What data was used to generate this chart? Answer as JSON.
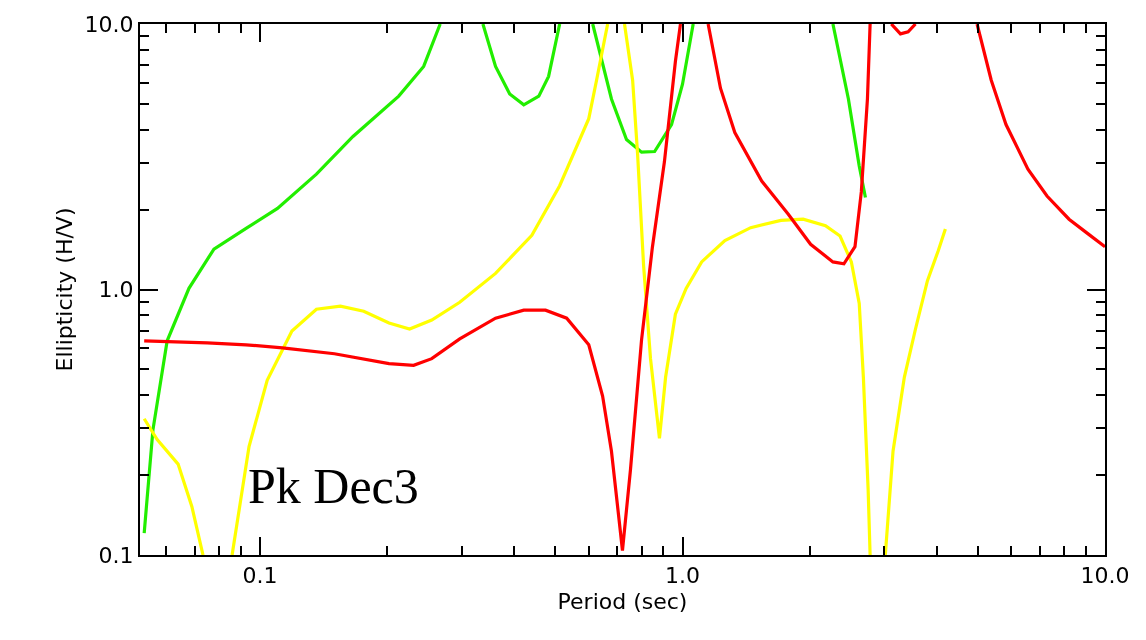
{
  "chart_data": {
    "type": "line",
    "xlabel": "Period (sec)",
    "ylabel": "Ellipticity (H/V)",
    "log": "xy",
    "grid": false,
    "marker": "none",
    "line_style": "solid",
    "xlim": [
      0.052,
      10
    ],
    "ylim": [
      0.1,
      10
    ],
    "xticks": [
      {
        "value": 0.06,
        "label": null
      },
      {
        "value": 0.07,
        "label": null
      },
      {
        "value": 0.08,
        "label": null
      },
      {
        "value": 0.09,
        "label": null
      },
      {
        "value": 0.1,
        "label": "0.1"
      },
      {
        "value": 0.2,
        "label": null
      },
      {
        "value": 0.3,
        "label": null
      },
      {
        "value": 0.4,
        "label": null
      },
      {
        "value": 0.5,
        "label": null
      },
      {
        "value": 0.6,
        "label": null
      },
      {
        "value": 0.7,
        "label": null
      },
      {
        "value": 0.8,
        "label": null
      },
      {
        "value": 0.9,
        "label": null
      },
      {
        "value": 1,
        "label": "1.0"
      },
      {
        "value": 2,
        "label": null
      },
      {
        "value": 3,
        "label": null
      },
      {
        "value": 4,
        "label": null
      },
      {
        "value": 5,
        "label": null
      },
      {
        "value": 6,
        "label": null
      },
      {
        "value": 7,
        "label": null
      },
      {
        "value": 8,
        "label": null
      },
      {
        "value": 9,
        "label": null
      },
      {
        "value": 10,
        "label": "10.0"
      }
    ],
    "yticks": [
      {
        "value": 0.1,
        "label": "0.1"
      },
      {
        "value": 0.2,
        "label": null
      },
      {
        "value": 0.3,
        "label": null
      },
      {
        "value": 0.4,
        "label": null
      },
      {
        "value": 0.5,
        "label": null
      },
      {
        "value": 0.6,
        "label": null
      },
      {
        "value": 0.7,
        "label": null
      },
      {
        "value": 0.8,
        "label": null
      },
      {
        "value": 0.9,
        "label": null
      },
      {
        "value": 1,
        "label": "1.0"
      },
      {
        "value": 2,
        "label": null
      },
      {
        "value": 3,
        "label": null
      },
      {
        "value": 4,
        "label": null
      },
      {
        "value": 5,
        "label": null
      },
      {
        "value": 6,
        "label": null
      },
      {
        "value": 7,
        "label": null
      },
      {
        "value": 8,
        "label": null
      },
      {
        "value": 9,
        "label": null
      },
      {
        "value": 10,
        "label": "10.0"
      }
    ],
    "annotations": [
      "Pk Dec3"
    ],
    "series": [
      {
        "color": "#22ee00",
        "x": [
          0.0532,
          0.0558,
          0.0603,
          0.0679,
          0.0778,
          0.0927,
          0.11,
          0.136,
          0.166,
          0.213,
          0.244,
          0.267
        ],
        "values": [
          0.121,
          0.296,
          0.641,
          1.01,
          1.42,
          1.7,
          2.02,
          2.72,
          3.77,
          5.35,
          6.92,
          10
        ]
      },
      {
        "color": "#22ee00",
        "x": [
          0.337,
          0.361,
          0.39,
          0.421,
          0.457,
          0.482,
          0.512
        ],
        "values": [
          10,
          6.92,
          5.45,
          4.96,
          5.35,
          6.35,
          10
        ]
      },
      {
        "color": "#22ee00",
        "x": [
          0.613,
          0.679,
          0.737,
          0.8,
          0.859,
          0.942,
          1.0,
          1.06
        ],
        "values": [
          10,
          5.22,
          3.67,
          3.29,
          3.31,
          4.18,
          5.93,
          10
        ]
      },
      {
        "color": "#22ee00",
        "x": [
          2.27,
          2.47,
          2.62,
          2.71
        ],
        "values": [
          10,
          5.22,
          2.92,
          2.22
        ]
      },
      {
        "color": "#ffff00",
        "x": [
          0.0532,
          0.0571,
          0.064,
          0.069,
          0.0733
        ],
        "values": [
          0.326,
          0.272,
          0.22,
          0.152,
          0.1
        ]
      },
      {
        "color": "#ffff00",
        "x": [
          0.0859,
          0.0942,
          0.104,
          0.119,
          0.136,
          0.155,
          0.176,
          0.202,
          0.226,
          0.255,
          0.297,
          0.361,
          0.44,
          0.512,
          0.6,
          0.626,
          0.665
        ],
        "values": [
          0.1,
          0.256,
          0.455,
          0.698,
          0.843,
          0.865,
          0.828,
          0.748,
          0.71,
          0.767,
          0.895,
          1.15,
          1.6,
          2.46,
          4.4,
          6.14,
          10
        ]
      },
      {
        "color": "#ffff00",
        "x": [
          0.729,
          0.762,
          0.783,
          0.809,
          0.84,
          0.882,
          0.912,
          0.962,
          1.02,
          1.11,
          1.26,
          1.45,
          1.71,
          1.93,
          2.18,
          2.36,
          2.51,
          2.62,
          2.68,
          2.75,
          2.78
        ],
        "values": [
          10,
          6.14,
          3.23,
          1.23,
          0.549,
          0.275,
          0.467,
          0.807,
          1.01,
          1.27,
          1.53,
          1.71,
          1.82,
          1.84,
          1.74,
          1.59,
          1.27,
          0.887,
          0.467,
          0.177,
          0.1
        ]
      },
      {
        "color": "#ffff00",
        "x": [
          3.02,
          3.15,
          3.35,
          3.56,
          3.8,
          4.03,
          4.19
        ],
        "values": [
          0.1,
          0.246,
          0.467,
          0.71,
          1.08,
          1.4,
          1.69
        ]
      },
      {
        "color": "#ff0000",
        "x": [
          0.0532,
          0.075,
          0.0927,
          0.113,
          0.15,
          0.202,
          0.231,
          0.255,
          0.297,
          0.361,
          0.421,
          0.474,
          0.532,
          0.6,
          0.647,
          0.679,
          0.721,
          0.753,
          0.8,
          0.849,
          0.906,
          0.962,
          0.989
        ],
        "values": [
          0.641,
          0.63,
          0.619,
          0.603,
          0.573,
          0.526,
          0.518,
          0.549,
          0.652,
          0.78,
          0.836,
          0.836,
          0.78,
          0.619,
          0.397,
          0.246,
          0.104,
          0.209,
          0.646,
          1.45,
          3.02,
          7.22,
          10
        ]
      },
      {
        "color": "#ff0000",
        "x": [
          1.15,
          1.23,
          1.33,
          1.54,
          1.78,
          2.01,
          2.27,
          2.41,
          2.56,
          2.65,
          2.74,
          2.78
        ],
        "values": [
          10,
          5.73,
          3.9,
          2.56,
          1.92,
          1.48,
          1.27,
          1.25,
          1.45,
          2.33,
          5.22,
          10
        ]
      },
      {
        "color": "#ff0000",
        "x": [
          3.12,
          3.28,
          3.42,
          3.56
        ],
        "values": [
          10,
          9.18,
          9.34,
          10
        ]
      },
      {
        "color": "#ff0000",
        "x": [
          4.98,
          5.38,
          5.83,
          6.57,
          7.29,
          8.22,
          9.12,
          10
        ],
        "values": [
          10,
          6.14,
          4.18,
          2.84,
          2.25,
          1.84,
          1.62,
          1.45
        ]
      }
    ]
  }
}
